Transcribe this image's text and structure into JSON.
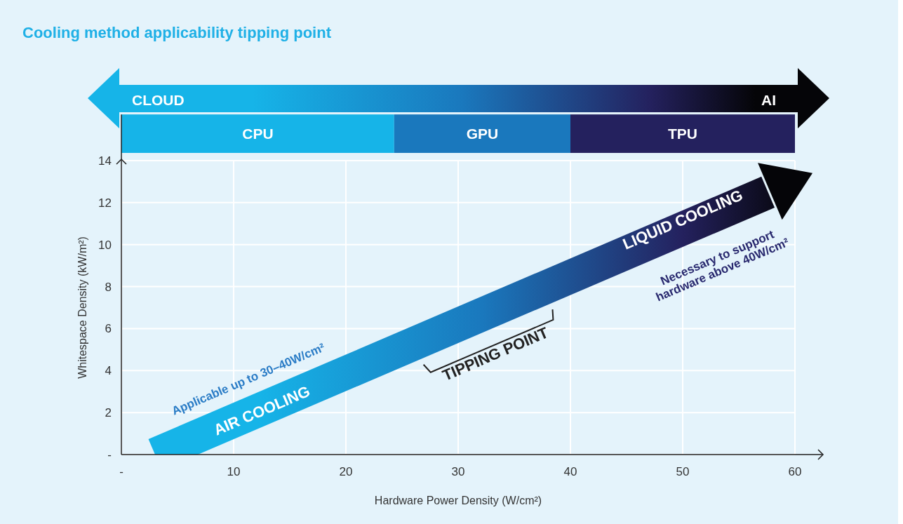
{
  "chart_data": {
    "type": "line",
    "title": "Cooling method applicability tipping point",
    "xlabel": "Hardware Power Density (W/cm²)",
    "ylabel": "Whitespace Density (kW/m²)",
    "xlim": [
      0,
      62.5
    ],
    "ylim": [
      0,
      16.2
    ],
    "xticks": [
      {
        "value": 0,
        "label": "-"
      },
      10,
      20,
      30,
      40,
      50,
      60
    ],
    "yticks": [
      {
        "value": 0,
        "label": "-"
      },
      2,
      4,
      6,
      8,
      10,
      12,
      14
    ],
    "grid": true,
    "series": [
      {
        "color": "#050508",
        "x": [
          3,
          57.6
        ],
        "values": [
          0,
          12.5
        ]
      }
    ],
    "bands": [
      {
        "axis": "x",
        "from": 0,
        "to": 24.3,
        "label": "CPU",
        "color": "#16b4e8"
      },
      {
        "axis": "x",
        "from": 24.3,
        "to": 40,
        "label": "GPU",
        "color": "#1a78bd"
      },
      {
        "axis": "x",
        "from": 40,
        "to": 60,
        "label": "TPU",
        "color": "#24215e"
      }
    ],
    "annotations": [
      "CLOUD",
      "AI",
      "Applicable up to 30–40W/cm²",
      "AIR COOLING",
      "TIPPING POINT",
      "LIQUID COOLING",
      "Necessary to support hardware above 40W/cm²"
    ]
  }
}
